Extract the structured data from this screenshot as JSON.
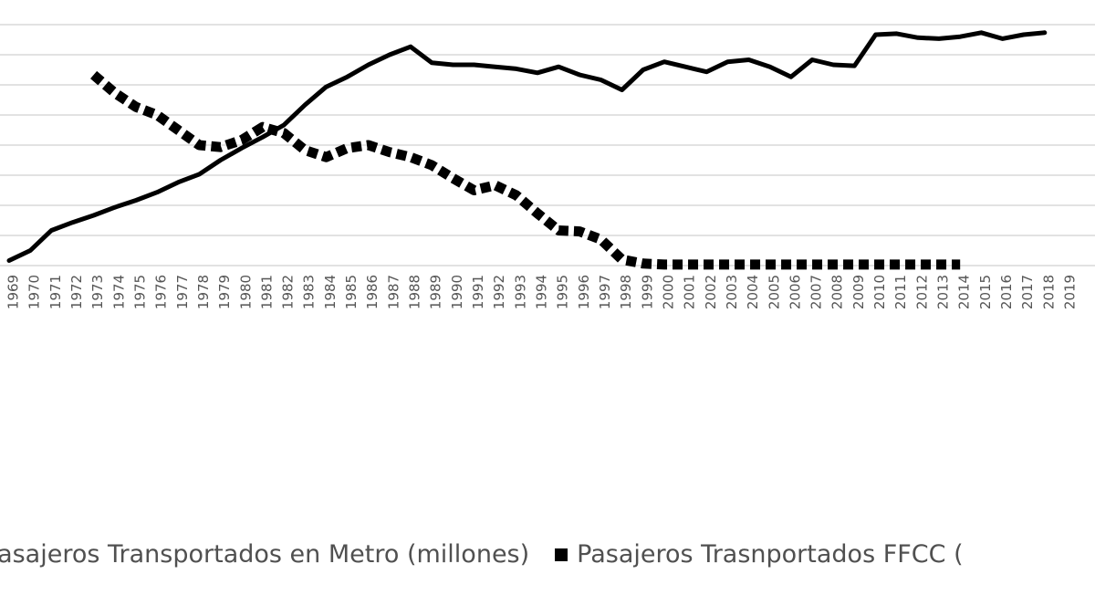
{
  "chart_data": {
    "type": "line",
    "x": [
      1969,
      1970,
      1971,
      1972,
      1973,
      1974,
      1975,
      1976,
      1977,
      1978,
      1979,
      1980,
      1981,
      1982,
      1983,
      1984,
      1985,
      1986,
      1987,
      1988,
      1989,
      1990,
      1991,
      1992,
      1993,
      1994,
      1995,
      1996,
      1997,
      1998,
      1999,
      2000,
      2001,
      2002,
      2003,
      2004,
      2005,
      2006,
      2007,
      2008,
      2009,
      2010,
      2011,
      2012,
      2013,
      2014,
      2015,
      2016,
      2017,
      2018,
      2019
    ],
    "series": [
      {
        "name": "Pasajeros Transportados en Metro (millones)",
        "style": "solid",
        "values": [
          0.5,
          1.5,
          3.5,
          4.3,
          5.0,
          5.8,
          6.5,
          7.3,
          8.3,
          9.1,
          10.5,
          11.7,
          12.8,
          14.0,
          16.0,
          17.8,
          18.8,
          20.0,
          21.0,
          21.8,
          20.2,
          20.0,
          20.0,
          19.8,
          19.6,
          19.2,
          19.8,
          19.0,
          18.5,
          17.5,
          19.5,
          20.3,
          19.8,
          19.3,
          20.3,
          20.5,
          19.8,
          18.8,
          20.5,
          20.0,
          19.9,
          23.0,
          23.1,
          22.7,
          22.6,
          22.8,
          23.2,
          22.6,
          23.0,
          23.2,
          null
        ]
      },
      {
        "name": "Pasajeros Trasnportados FFCC (",
        "style": "dotted",
        "values": [
          null,
          null,
          null,
          null,
          19.0,
          17.2,
          15.8,
          15.0,
          13.5,
          12.0,
          11.8,
          12.5,
          13.8,
          13.2,
          11.5,
          10.8,
          11.7,
          12.0,
          11.3,
          10.8,
          10.0,
          8.7,
          7.5,
          8.0,
          7.0,
          5.2,
          3.5,
          3.4,
          2.6,
          0.6,
          0.2,
          0.1,
          0.1,
          0.1,
          0.1,
          0.1,
          0.1,
          0.1,
          0.1,
          0.1,
          0.1,
          0.1,
          0.1,
          0.1,
          0.1,
          0.1,
          null,
          null,
          null,
          null,
          null
        ]
      }
    ],
    "ylim": [
      0,
      24
    ],
    "grid": true,
    "legend_position": "bottom",
    "title": "",
    "xlabel": "",
    "ylabel": ""
  },
  "legend": {
    "metro_label": "Pasajeros Transportados en Metro (millones)",
    "ffcc_label": "Pasajeros Trasnportados FFCC ("
  },
  "colors": {
    "line": "#000000",
    "grid": "#d9d9d9",
    "text": "#4a4a4a"
  }
}
